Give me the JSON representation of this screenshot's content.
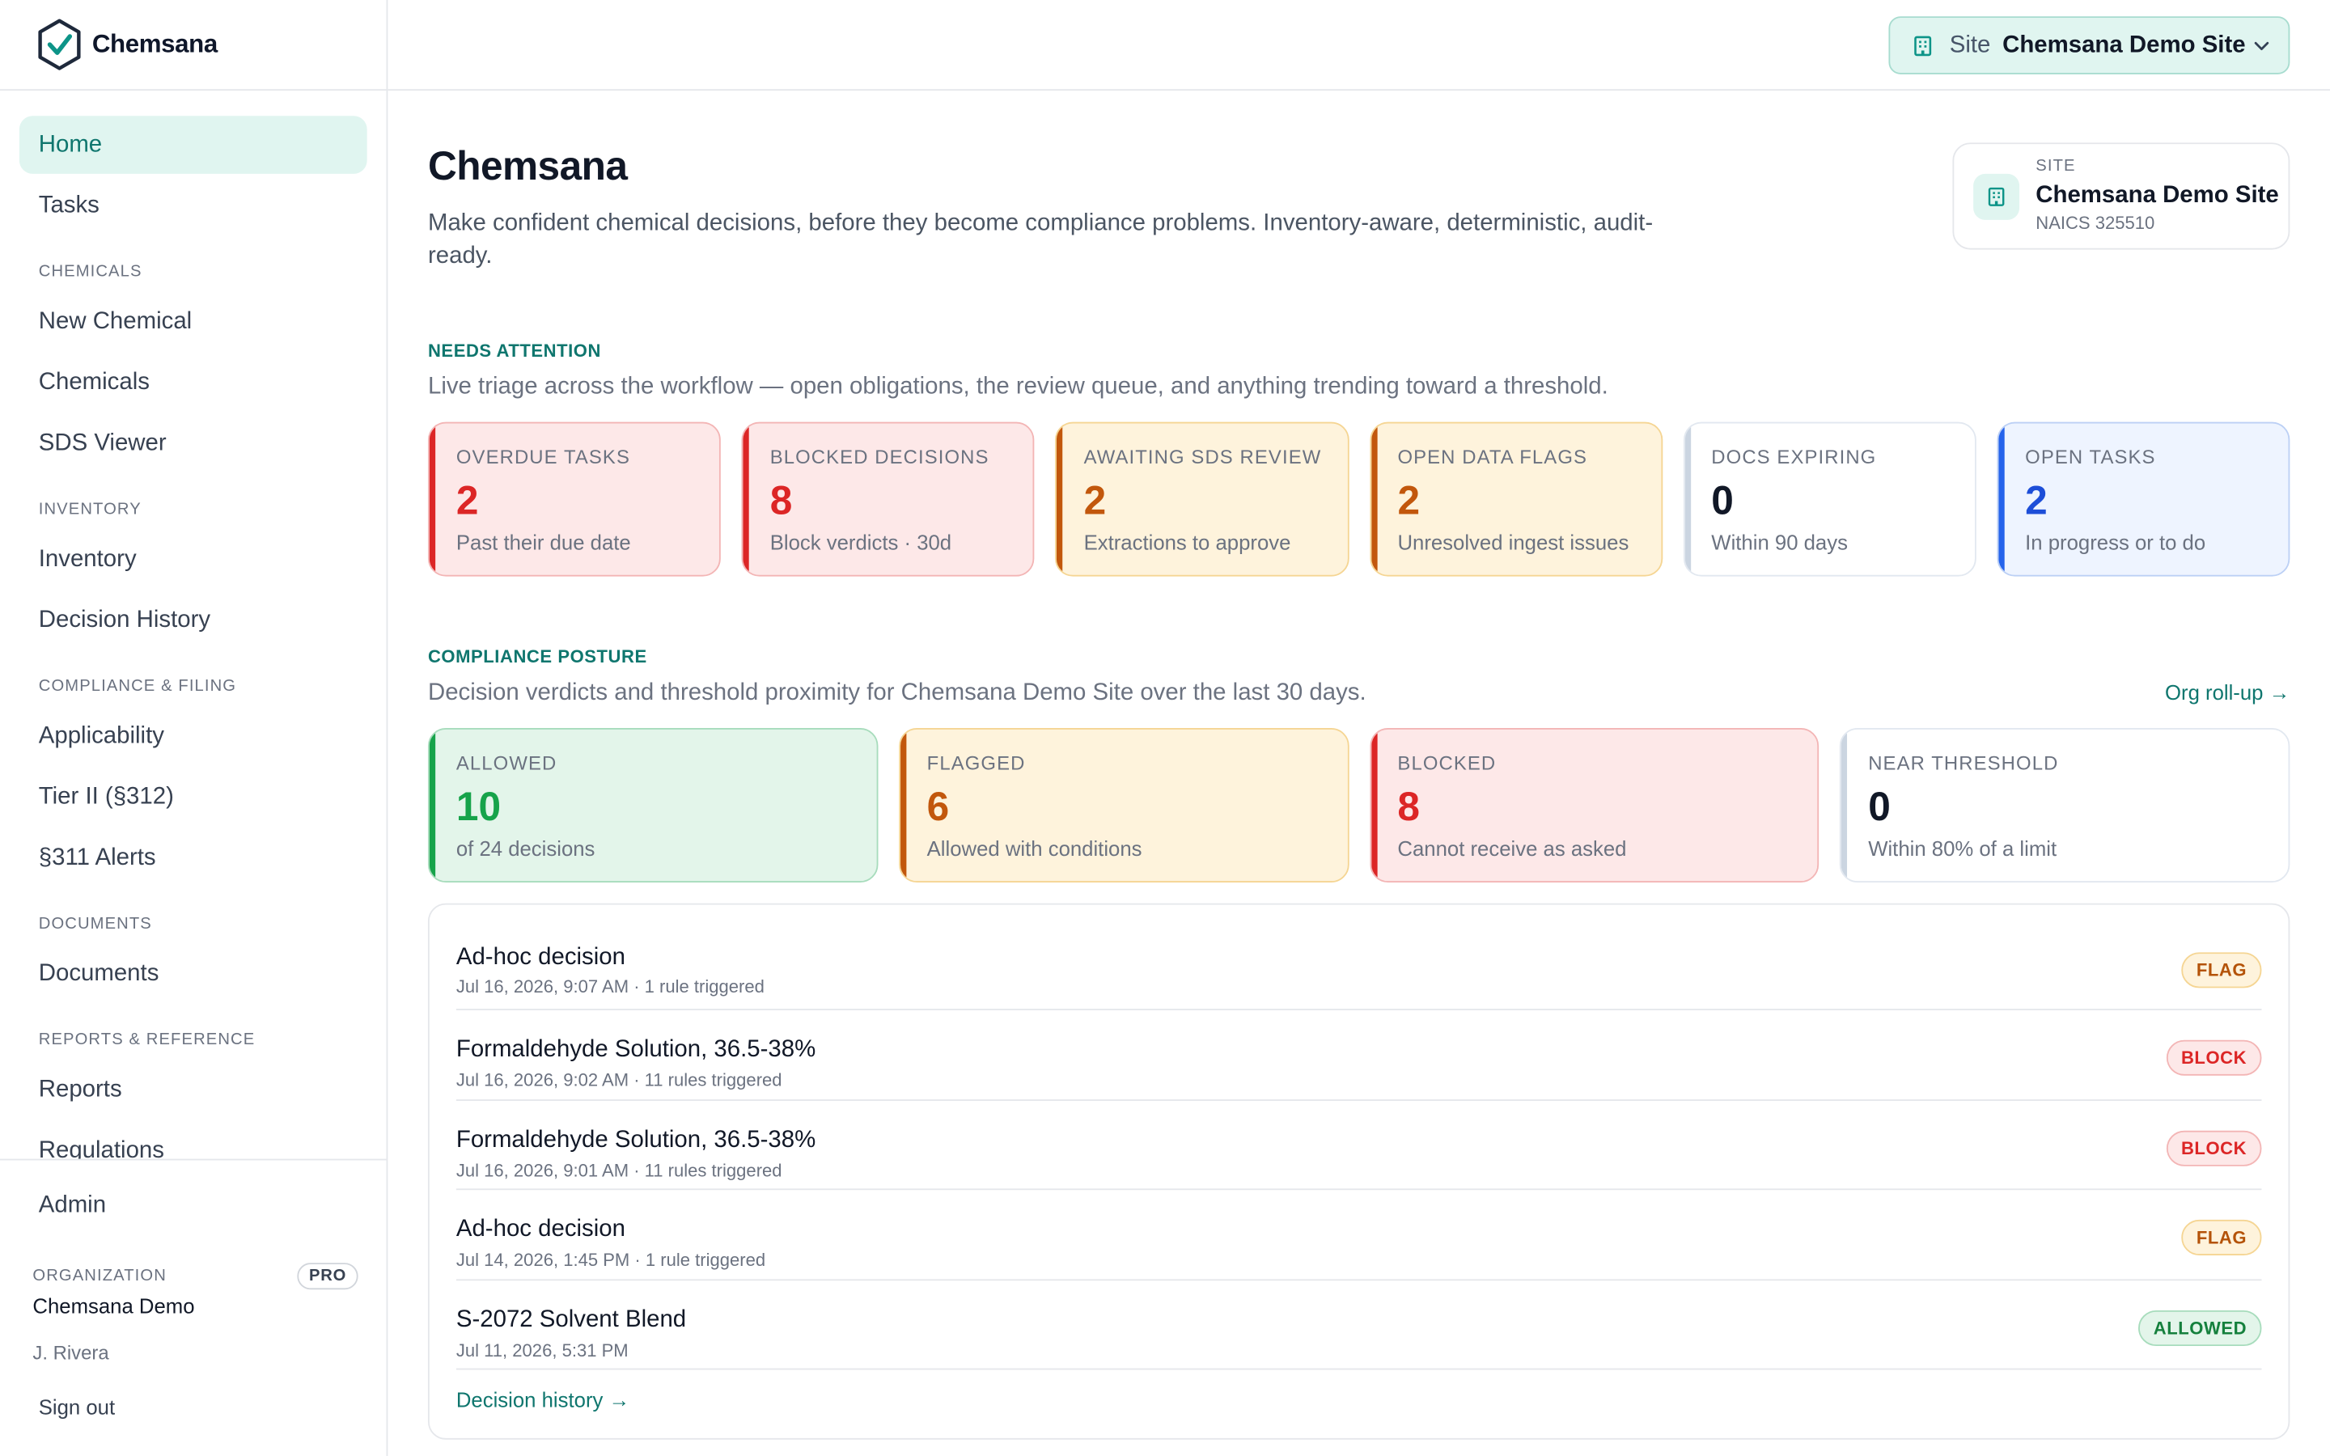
{
  "brand": {
    "name": "Chemsana"
  },
  "sidebar": {
    "items": [
      {
        "label": "Home",
        "active": true
      },
      {
        "label": "Tasks"
      },
      {
        "section": "CHEMICALS"
      },
      {
        "label": "New Chemical"
      },
      {
        "label": "Chemicals"
      },
      {
        "label": "SDS Viewer"
      },
      {
        "section": "INVENTORY"
      },
      {
        "label": "Inventory"
      },
      {
        "label": "Decision History"
      },
      {
        "section": "COMPLIANCE & FILING"
      },
      {
        "label": "Applicability"
      },
      {
        "label": "Tier II (§312)"
      },
      {
        "label": "§311 Alerts"
      },
      {
        "section": "DOCUMENTS"
      },
      {
        "label": "Documents"
      },
      {
        "section": "REPORTS & REFERENCE"
      },
      {
        "label": "Reports"
      },
      {
        "label": "Regulations"
      }
    ],
    "admin": "Admin",
    "org_label": "ORGANIZATION",
    "plan_badge": "PRO",
    "org_name": "Chemsana Demo",
    "user": "J. Rivera",
    "sign_out": "Sign out"
  },
  "topbar": {
    "site_label": "Site",
    "site_value": "Chemsana Demo Site"
  },
  "header": {
    "title": "Chemsana",
    "description": "Make confident chemical decisions, before they become compliance problems. Inventory-aware, deterministic, audit-ready.",
    "site_card": {
      "label": "SITE",
      "name": "Chemsana Demo Site",
      "naics": "NAICS 325510"
    }
  },
  "attention": {
    "label": "NEEDS ATTENTION",
    "subtitle": "Live triage across the workflow — open obligations, the review queue, and anything trending toward a threshold.",
    "cards": [
      {
        "title": "Overdue Tasks",
        "value": "2",
        "sub": "Past their due date",
        "tone": "red"
      },
      {
        "title": "Blocked Decisions",
        "value": "8",
        "sub": "Block verdicts · 30d",
        "tone": "red"
      },
      {
        "title": "Awaiting SDS Review",
        "value": "2",
        "sub": "Extractions to approve",
        "tone": "amber"
      },
      {
        "title": "Open Data Flags",
        "value": "2",
        "sub": "Unresolved ingest issues",
        "tone": "amber"
      },
      {
        "title": "Docs Expiring",
        "value": "0",
        "sub": "Within 90 days",
        "tone": "white"
      },
      {
        "title": "Open Tasks",
        "value": "2",
        "sub": "In progress or to do",
        "tone": "blue"
      }
    ]
  },
  "posture": {
    "label": "COMPLIANCE POSTURE",
    "subtitle": "Decision verdicts and threshold proximity for Chemsana Demo Site over the last 30 days.",
    "rollup_link": "Org roll-up →",
    "cards": [
      {
        "title": "Allowed",
        "value": "10",
        "sub": "of 24 decisions",
        "tone": "green"
      },
      {
        "title": "Flagged",
        "value": "6",
        "sub": "Allowed with conditions",
        "tone": "amber"
      },
      {
        "title": "Blocked",
        "value": "8",
        "sub": "Cannot receive as asked",
        "tone": "red"
      },
      {
        "title": "Near Threshold",
        "value": "0",
        "sub": "Within 80% of a limit",
        "tone": "white"
      }
    ]
  },
  "decisions": {
    "rows": [
      {
        "title": "Ad-hoc decision",
        "meta": "Jul 16, 2026, 9:07 AM · 1 rule triggered",
        "badge": "FLAG",
        "badge_type": "flag"
      },
      {
        "title": "Formaldehyde Solution, 36.5-38%",
        "meta": "Jul 16, 2026, 9:02 AM · 11 rules triggered",
        "badge": "BLOCK",
        "badge_type": "block"
      },
      {
        "title": "Formaldehyde Solution, 36.5-38%",
        "meta": "Jul 16, 2026, 9:01 AM · 11 rules triggered",
        "badge": "BLOCK",
        "badge_type": "block"
      },
      {
        "title": "Ad-hoc decision",
        "meta": "Jul 14, 2026, 1:45 PM · 1 rule triggered",
        "badge": "FLAG",
        "badge_type": "flag"
      },
      {
        "title": "S-2072 Solvent Blend",
        "meta": "Jul 11, 2026, 5:31 PM",
        "badge": "ALLOWED",
        "badge_type": "allowed"
      }
    ],
    "history_link": "Decision history →"
  },
  "colors": {
    "accent": "#0f766e",
    "danger": "#dc2626",
    "warning": "#c2570c",
    "success": "#16a34a",
    "info": "#1d4ed8"
  },
  "icons": {
    "logo": "hexagon-check-icon",
    "site": "building-icon",
    "dropdown": "chevron-down-icon"
  }
}
